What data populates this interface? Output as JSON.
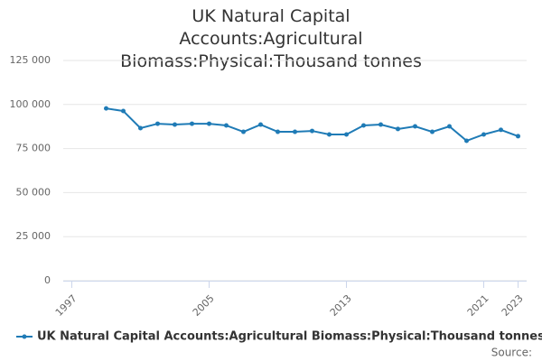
{
  "chart_data": {
    "type": "line",
    "title": "UK Natural Capital Accounts:Agricultural Biomass:Physical:Thousand tonnes",
    "x": [
      1999,
      2000,
      2001,
      2002,
      2003,
      2004,
      2005,
      2006,
      2007,
      2008,
      2009,
      2010,
      2011,
      2012,
      2013,
      2014,
      2015,
      2016,
      2017,
      2018,
      2019,
      2020,
      2021,
      2022,
      2023
    ],
    "series": [
      {
        "name": "UK Natural Capital Accounts:Agricultural Biomass:Physical:Thousand tonnes",
        "color": "#1f7bb6",
        "values": [
          97800,
          96300,
          86600,
          89100,
          88600,
          89100,
          89100,
          88100,
          84500,
          88600,
          84500,
          84500,
          85000,
          83000,
          83000,
          88100,
          88600,
          86100,
          87600,
          84500,
          87600,
          79400,
          83000,
          85600,
          82000
        ]
      }
    ],
    "xlim": [
      1996.5,
      2023.5
    ],
    "xticks": [
      1997,
      2005,
      2013,
      2021,
      2023
    ],
    "ylim": [
      0,
      125000
    ],
    "yticks": [
      0,
      {
        "value": 25000,
        "label": "25 000"
      },
      {
        "value": 50000,
        "label": "50 000"
      },
      {
        "value": 75000,
        "label": "75 000"
      },
      {
        "value": 100000,
        "label": "100 000"
      },
      {
        "value": 125000,
        "label": "125 000"
      }
    ],
    "grid": true,
    "legend": "bottom",
    "source": "Source:"
  }
}
